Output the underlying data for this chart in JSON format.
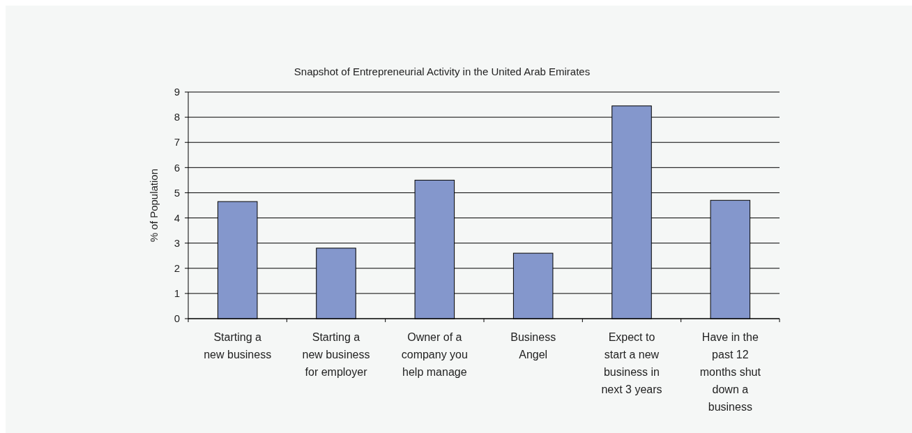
{
  "chart_data": {
    "type": "bar",
    "title": "Snapshot of Entrepreneurial Activity in the United Arab Emirates",
    "ylabel": "% of Population",
    "categories": [
      "Starting a new business",
      "Starting a new business for employer",
      "Owner of a company you help manage",
      "Business Angel",
      "Expect to start a new business in next 3 years",
      "Have in the past 12 months shut down a business"
    ],
    "values": [
      4.65,
      2.8,
      5.5,
      2.6,
      8.45,
      4.7
    ],
    "color": "#8497cc",
    "ylim": [
      0,
      9
    ],
    "yticks": [
      0,
      1,
      2,
      3,
      4,
      5,
      6,
      7,
      8,
      9
    ],
    "grid": "y"
  }
}
